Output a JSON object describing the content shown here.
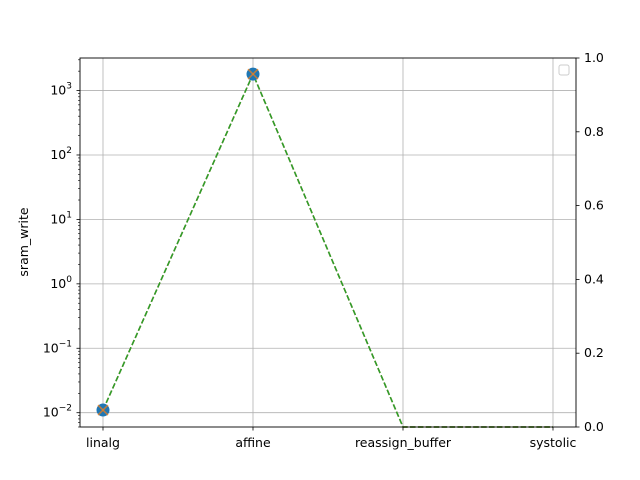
{
  "chart_data": {
    "type": "line",
    "title": "",
    "xlabel": "",
    "ylabel": "sram_write",
    "categories": [
      "linalg",
      "affine",
      "reassign_buffer",
      "systolic"
    ],
    "y_scale": "log",
    "ylim": [
      0.006,
      3200
    ],
    "y_ticks": [
      {
        "value": 0.01,
        "base": "10",
        "exp": "−2"
      },
      {
        "value": 0.1,
        "base": "10",
        "exp": "−1"
      },
      {
        "value": 1,
        "base": "10",
        "exp": "0"
      },
      {
        "value": 10,
        "base": "10",
        "exp": "1"
      },
      {
        "value": 100,
        "base": "10",
        "exp": "2"
      },
      {
        "value": 1000,
        "base": "10",
        "exp": "3"
      }
    ],
    "right_axis": {
      "ylim": [
        0.0,
        1.0
      ],
      "ticks": [
        "0.0",
        "0.2",
        "0.4",
        "0.6",
        "0.8",
        "1.0"
      ]
    },
    "grid": true,
    "legend": "top-right (empty)",
    "series": [
      {
        "color": "#1f77b4",
        "marker": "circle",
        "linestyle": "dashed",
        "values": [
          0.011,
          1800,
          0,
          0
        ]
      },
      {
        "color": "#ff7f0e",
        "marker": "x",
        "linestyle": "dashed",
        "values": [
          0.011,
          1800,
          0,
          0
        ]
      },
      {
        "color": "#2ca02c",
        "marker": "none",
        "linestyle": "dashed",
        "values": [
          0.011,
          1800,
          0,
          0
        ]
      }
    ]
  }
}
